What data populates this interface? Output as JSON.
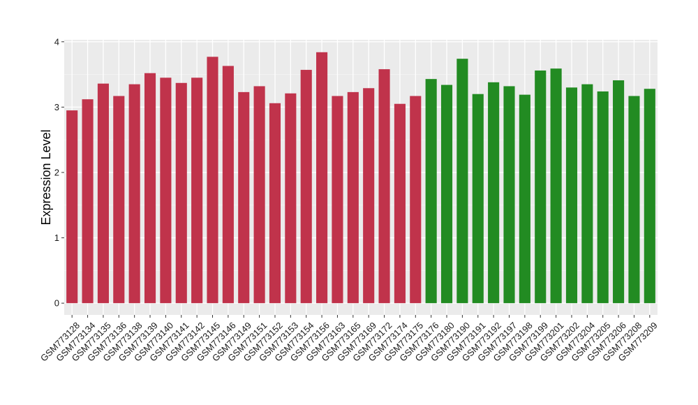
{
  "chart_data": {
    "type": "bar",
    "title": "",
    "xlabel": "",
    "ylabel": "Expression Level",
    "ylim": [
      -0.18,
      4.03
    ],
    "yticks": [
      0,
      1,
      2,
      3,
      4
    ],
    "grid": true,
    "legend": "none",
    "panel_background": "#ebebeb",
    "colors": {
      "group_1": "#c0334b",
      "group_2": "#228b22"
    },
    "categories": [
      "GSM773128",
      "GSM773134",
      "GSM773135",
      "GSM773136",
      "GSM773138",
      "GSM773139",
      "GSM773140",
      "GSM773141",
      "GSM773142",
      "GSM773145",
      "GSM773146",
      "GSM773149",
      "GSM773151",
      "GSM773152",
      "GSM773153",
      "GSM773154",
      "GSM773156",
      "GSM773163",
      "GSM773165",
      "GSM773169",
      "GSM773172",
      "GSM773174",
      "GSM773175",
      "GSM773176",
      "GSM773180",
      "GSM773190",
      "GSM773191",
      "GSM773192",
      "GSM773197",
      "GSM773198",
      "GSM773199",
      "GSM773201",
      "GSM773202",
      "GSM773204",
      "GSM773205",
      "GSM773206",
      "GSM773208",
      "GSM773209"
    ],
    "values": [
      2.95,
      3.12,
      3.36,
      3.17,
      3.35,
      3.52,
      3.45,
      3.37,
      3.45,
      3.77,
      3.63,
      3.23,
      3.32,
      3.06,
      3.21,
      3.57,
      3.84,
      3.17,
      3.23,
      3.29,
      3.58,
      3.05,
      3.17,
      3.43,
      3.34,
      3.74,
      3.2,
      3.38,
      3.32,
      3.19,
      3.56,
      3.59,
      3.3,
      3.35,
      3.24,
      3.41,
      3.17,
      3.28
    ],
    "groups": [
      1,
      1,
      1,
      1,
      1,
      1,
      1,
      1,
      1,
      1,
      1,
      1,
      1,
      1,
      1,
      1,
      1,
      1,
      1,
      1,
      1,
      1,
      1,
      2,
      2,
      2,
      2,
      2,
      2,
      2,
      2,
      2,
      2,
      2,
      2,
      2,
      2,
      2
    ]
  }
}
